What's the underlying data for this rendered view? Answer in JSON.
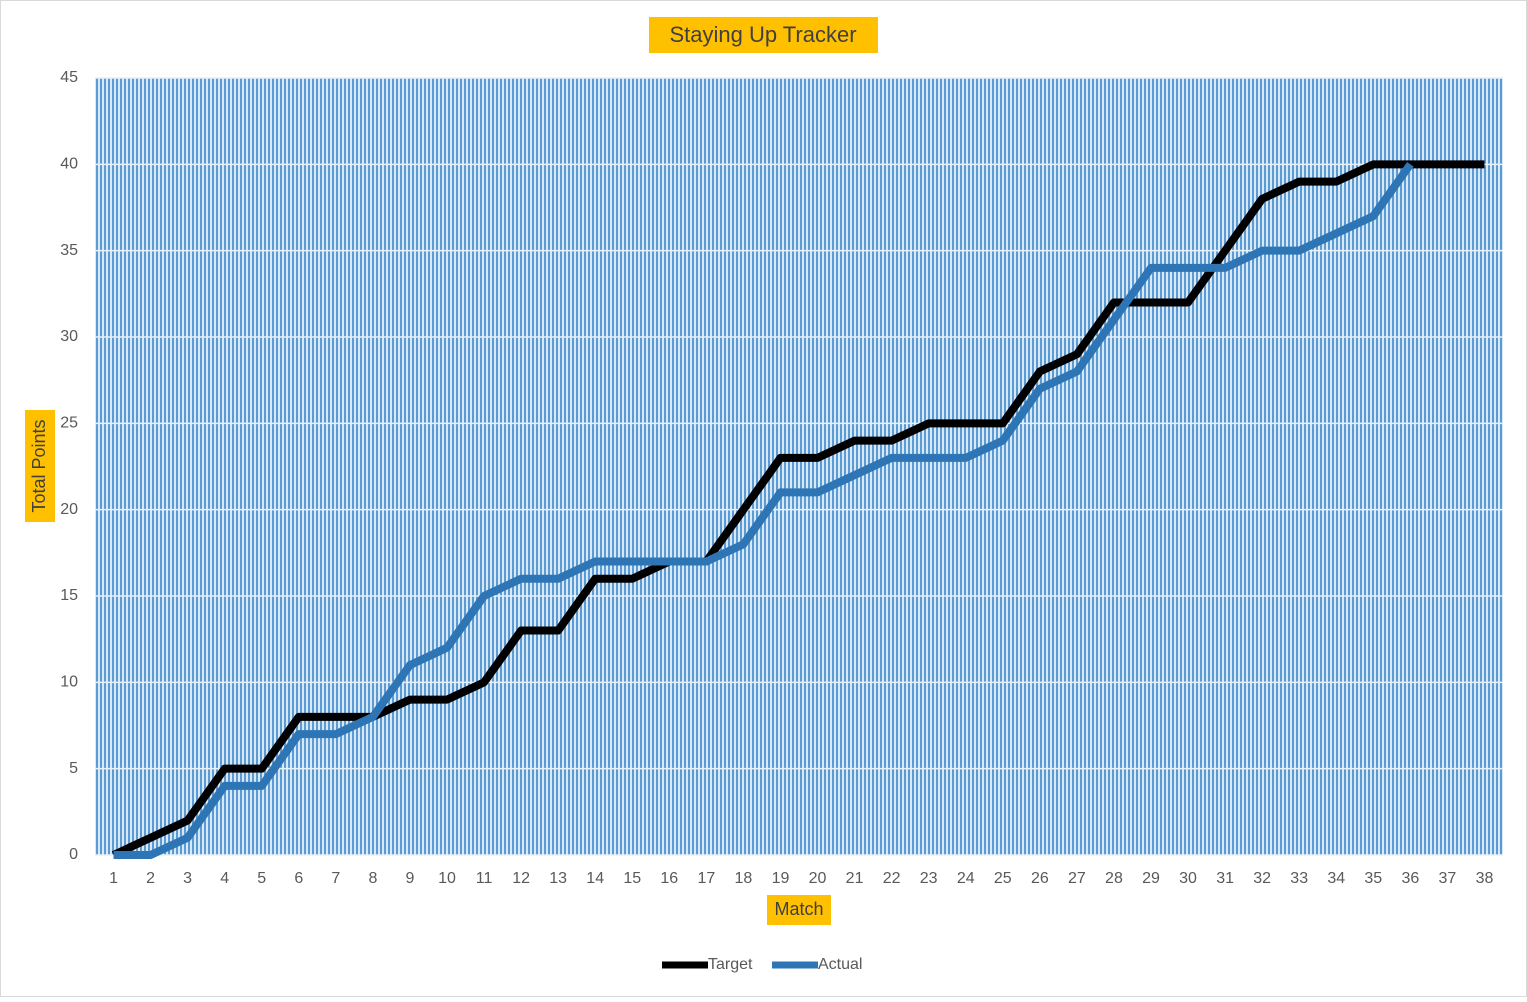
{
  "chart_data": {
    "type": "line",
    "title": "Staying Up Tracker",
    "x_label": "Match",
    "y_label": "Total Points",
    "categories": [
      "1",
      "2",
      "3",
      "4",
      "5",
      "6",
      "7",
      "8",
      "9",
      "10",
      "11",
      "12",
      "13",
      "14",
      "15",
      "16",
      "17",
      "18",
      "19",
      "20",
      "21",
      "22",
      "23",
      "24",
      "25",
      "26",
      "27",
      "28",
      "29",
      "30",
      "31",
      "32",
      "33",
      "34",
      "35",
      "36",
      "37",
      "38"
    ],
    "series": [
      {
        "name": "Target",
        "color": "#000000",
        "values": [
          0,
          1,
          2,
          5,
          5,
          8,
          8,
          8,
          9,
          9,
          10,
          13,
          13,
          16,
          16,
          17,
          17,
          20,
          23,
          23,
          24,
          24,
          25,
          25,
          25,
          28,
          29,
          32,
          32,
          32,
          35,
          38,
          39,
          39,
          40,
          40,
          40,
          40
        ]
      },
      {
        "name": "Actual",
        "color": "#2e75b6",
        "values": [
          0,
          0,
          1,
          4,
          4,
          7,
          7,
          8,
          11,
          12,
          15,
          16,
          16,
          17,
          17,
          17,
          17,
          18,
          21,
          21,
          22,
          23,
          23,
          23,
          24,
          27,
          28,
          31,
          34,
          34,
          34,
          35,
          35,
          36,
          37,
          40,
          null,
          null
        ]
      }
    ],
    "ylim": [
      0,
      45
    ],
    "yticks": [
      0,
      5,
      10,
      15,
      20,
      25,
      30,
      35,
      40,
      45
    ],
    "grid": true,
    "legend": "bottom"
  }
}
